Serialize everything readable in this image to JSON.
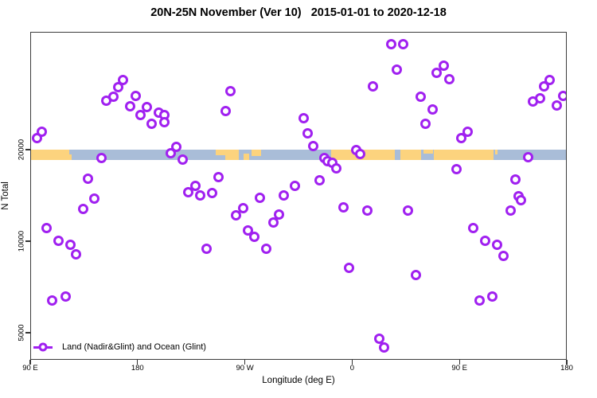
{
  "chart_data": {
    "type": "scatter",
    "title": "20N-25N November (Ver 10)   2015-01-01 to 2020-12-18",
    "xlabel": "Longitude (deg E)",
    "ylabel": "N Total",
    "grid": false,
    "x_axis": {
      "range": [
        90,
        540
      ],
      "ticks": [
        {
          "pos": 90,
          "label": "90 E"
        },
        {
          "pos": 180,
          "label": "180"
        },
        {
          "pos": 270,
          "label": "90 W"
        },
        {
          "pos": 360,
          "label": "0"
        },
        {
          "pos": 450,
          "label": "90 E"
        },
        {
          "pos": 540,
          "label": "180"
        }
      ]
    },
    "y_axis": {
      "scale": "log",
      "range": [
        4070,
        48800
      ],
      "ticks": [
        {
          "value": 20000,
          "label": "20000"
        },
        {
          "value": 10000,
          "label": "10000"
        },
        {
          "value": 5000,
          "label": "5000"
        }
      ]
    },
    "legend": {
      "label": "Land (Nadir&Glint) and Ocean (Glint)",
      "position": "bottom-left"
    },
    "series": [
      {
        "name": "Land (Nadir&Glint) and Ocean (Glint)",
        "marker": "open-circle",
        "color": "#a020f0",
        "points": [
          [
            99,
            23100
          ],
          [
            95,
            22000
          ],
          [
            167,
            34000
          ],
          [
            163,
            32200
          ],
          [
            159,
            30100
          ],
          [
            153,
            29100
          ],
          [
            178,
            30200
          ],
          [
            173,
            28000
          ],
          [
            187,
            27700
          ],
          [
            182,
            26100
          ],
          [
            197,
            26600
          ],
          [
            202,
            26100
          ],
          [
            191,
            24500
          ],
          [
            202,
            24800
          ],
          [
            149,
            18900
          ],
          [
            138,
            16100
          ],
          [
            257,
            31400
          ],
          [
            253,
            26900
          ],
          [
            212,
            20500
          ],
          [
            207,
            19600
          ],
          [
            217,
            18700
          ],
          [
            247,
            16300
          ],
          [
            228,
            15300
          ],
          [
            222,
            14600
          ],
          [
            232,
            14200
          ],
          [
            242,
            14500
          ],
          [
            311,
            15300
          ],
          [
            282,
            14000
          ],
          [
            302,
            14200
          ],
          [
            392,
            44800
          ],
          [
            402,
            44800
          ],
          [
            397,
            36800
          ],
          [
            377,
            32400
          ],
          [
            417,
            30100
          ],
          [
            427,
            27200
          ],
          [
            421,
            24400
          ],
          [
            319,
            25500
          ],
          [
            322,
            22800
          ],
          [
            327,
            20700
          ],
          [
            363,
            20000
          ],
          [
            366,
            19400
          ],
          [
            336,
            18900
          ],
          [
            339,
            18400
          ],
          [
            343,
            18200
          ],
          [
            346,
            17500
          ],
          [
            332,
            15900
          ],
          [
            436,
            38100
          ],
          [
            430,
            35900
          ],
          [
            441,
            34200
          ],
          [
            525,
            34000
          ],
          [
            520,
            32400
          ],
          [
            517,
            29700
          ],
          [
            511,
            28900
          ],
          [
            536,
            30300
          ],
          [
            531,
            28100
          ],
          [
            456,
            23100
          ],
          [
            451,
            22000
          ],
          [
            507,
            19000
          ],
          [
            447,
            17300
          ],
          [
            496,
            16000
          ],
          [
            499,
            14100
          ],
          [
            143,
            13900
          ],
          [
            134,
            12800
          ],
          [
            103,
            11100
          ],
          [
            113,
            10100
          ],
          [
            123,
            9800
          ],
          [
            128,
            9100
          ],
          [
            119,
            6600
          ],
          [
            108,
            6400
          ],
          [
            268,
            12900
          ],
          [
            262,
            12200
          ],
          [
            298,
            12300
          ],
          [
            293,
            11600
          ],
          [
            272,
            10900
          ],
          [
            277,
            10400
          ],
          [
            237,
            9500
          ],
          [
            287,
            9500
          ],
          [
            352,
            13000
          ],
          [
            372,
            12700
          ],
          [
            406,
            12700
          ],
          [
            357,
            8200
          ],
          [
            413,
            7800
          ],
          [
            382,
            4800
          ],
          [
            386,
            4500
          ],
          [
            501,
            13700
          ],
          [
            492,
            12700
          ],
          [
            461,
            11100
          ],
          [
            471,
            10100
          ],
          [
            481,
            9800
          ],
          [
            486,
            9000
          ],
          [
            477,
            6600
          ],
          [
            466,
            6400
          ]
        ]
      }
    ],
    "map_band": {
      "description": "world coastline strip 20N-25N drawn across plot near N=20000",
      "n_top": 20150,
      "n_bottom": 18650,
      "ocean_color": "#a9bdd8",
      "land_color": "#fcd37e",
      "land_patches": [
        {
          "from": 90,
          "to": 122,
          "top": 0,
          "h": 1
        },
        {
          "from": 122,
          "to": 124,
          "top": 0.5,
          "h": 0.5
        },
        {
          "from": 245,
          "to": 253,
          "top": 0,
          "h": 0.6
        },
        {
          "from": 253,
          "to": 264,
          "top": 0,
          "h": 1
        },
        {
          "from": 268,
          "to": 273,
          "top": 0.45,
          "h": 0.55
        },
        {
          "from": 275,
          "to": 283,
          "top": 0,
          "h": 0.65
        },
        {
          "from": 342,
          "to": 395,
          "top": 0,
          "h": 1
        },
        {
          "from": 400,
          "to": 417,
          "top": 0,
          "h": 1
        },
        {
          "from": 419,
          "to": 427,
          "top": 0,
          "h": 0.4
        },
        {
          "from": 428,
          "to": 478,
          "top": 0,
          "h": 1
        },
        {
          "from": 479,
          "to": 481,
          "top": 0,
          "h": 0.5
        }
      ]
    }
  }
}
